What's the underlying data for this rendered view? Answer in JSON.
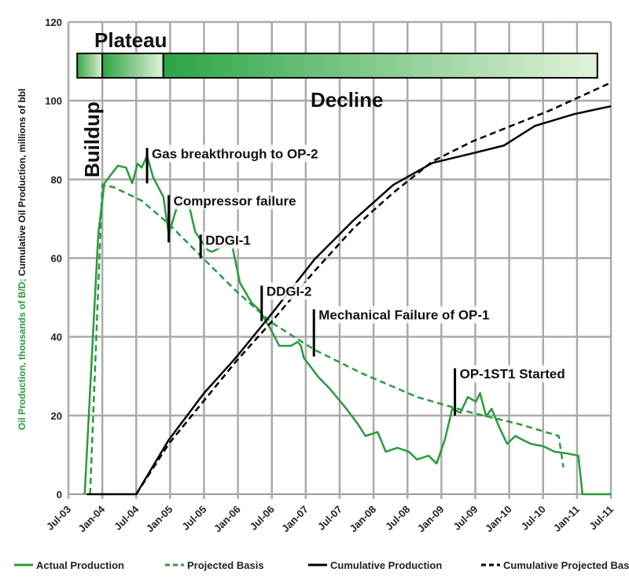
{
  "chart_data": {
    "type": "line",
    "title": "",
    "ylabel_green": "Oil Production, thousands of B/D;",
    "ylabel_black": " Cumulative Oil Production, millions of bbl",
    "xlabel": "",
    "ylim": [
      0,
      120
    ],
    "xlim": [
      2003.5,
      2011.5
    ],
    "yticks": [
      0,
      20,
      40,
      60,
      80,
      100,
      120
    ],
    "xticks": [
      {
        "x": 2003.5,
        "label": "Jul-03"
      },
      {
        "x": 2004.0,
        "label": "Jan-04"
      },
      {
        "x": 2004.5,
        "label": "Jul-04"
      },
      {
        "x": 2005.0,
        "label": "Jan-05"
      },
      {
        "x": 2005.5,
        "label": "Jul-05"
      },
      {
        "x": 2006.0,
        "label": "Jan-06"
      },
      {
        "x": 2006.5,
        "label": "Jul-06"
      },
      {
        "x": 2007.0,
        "label": "Jan-07"
      },
      {
        "x": 2007.5,
        "label": "Jul-07"
      },
      {
        "x": 2008.0,
        "label": "Jan-08"
      },
      {
        "x": 2008.5,
        "label": "Jul-08"
      },
      {
        "x": 2009.0,
        "label": "Jan-09"
      },
      {
        "x": 2009.5,
        "label": "Jul-09"
      },
      {
        "x": 2010.0,
        "label": "Jan-10"
      },
      {
        "x": 2010.5,
        "label": "Jul-10"
      },
      {
        "x": 2011.0,
        "label": "Jan-11"
      },
      {
        "x": 2011.5,
        "label": "Jul-11"
      }
    ],
    "grid": true,
    "legend_position": "bottom",
    "series": [
      {
        "name": "Actual Production",
        "color": "#2a9a3e",
        "dash": false,
        "points": [
          [
            2003.74,
            0
          ],
          [
            2003.94,
            66
          ],
          [
            2004.03,
            79
          ],
          [
            2004.23,
            83.5
          ],
          [
            2004.35,
            83
          ],
          [
            2004.44,
            79
          ],
          [
            2004.52,
            84
          ],
          [
            2004.58,
            83
          ],
          [
            2004.66,
            86
          ],
          [
            2004.75,
            80.5
          ],
          [
            2004.9,
            75.6
          ],
          [
            2004.98,
            66
          ],
          [
            2005.1,
            73
          ],
          [
            2005.18,
            74.6
          ],
          [
            2005.27,
            74
          ],
          [
            2005.37,
            66.7
          ],
          [
            2005.45,
            64.6
          ],
          [
            2005.56,
            62
          ],
          [
            2005.62,
            61.6
          ],
          [
            2005.74,
            62.7
          ],
          [
            2005.91,
            63.6
          ],
          [
            2006.03,
            53.7
          ],
          [
            2006.2,
            48.7
          ],
          [
            2006.32,
            46.7
          ],
          [
            2006.49,
            41.7
          ],
          [
            2006.61,
            37.7
          ],
          [
            2006.78,
            37.7
          ],
          [
            2006.88,
            38.7
          ],
          [
            2006.93,
            37.7
          ],
          [
            2006.97,
            34.7
          ],
          [
            2007.19,
            29.7
          ],
          [
            2007.36,
            26.7
          ],
          [
            2007.6,
            21.7
          ],
          [
            2007.77,
            17.8
          ],
          [
            2007.88,
            14.8
          ],
          [
            2008.06,
            15.8
          ],
          [
            2008.18,
            10.8
          ],
          [
            2008.35,
            11.8
          ],
          [
            2008.52,
            10.8
          ],
          [
            2008.64,
            8.8
          ],
          [
            2008.81,
            9.8
          ],
          [
            2008.93,
            7.8
          ],
          [
            2009.05,
            13.8
          ],
          [
            2009.16,
            21.7
          ],
          [
            2009.28,
            20.7
          ],
          [
            2009.39,
            24.7
          ],
          [
            2009.51,
            23.5
          ],
          [
            2009.57,
            25.7
          ],
          [
            2009.66,
            19.8
          ],
          [
            2009.74,
            21.7
          ],
          [
            2009.86,
            16.8
          ],
          [
            2009.97,
            12.8
          ],
          [
            2010.09,
            14.8
          ],
          [
            2010.2,
            13.8
          ],
          [
            2010.32,
            12.8
          ],
          [
            2010.5,
            12.2
          ],
          [
            2010.67,
            10.8
          ],
          [
            2010.84,
            10.4
          ],
          [
            2011.02,
            9.8
          ],
          [
            2011.08,
            0
          ],
          [
            2011.5,
            0
          ]
        ]
      },
      {
        "name": "Projected Basis",
        "color": "#2a9a3e",
        "dash": true,
        "points": [
          [
            2003.82,
            0
          ],
          [
            2004.0,
            78.6
          ],
          [
            2004.17,
            78
          ],
          [
            2004.58,
            74.6
          ],
          [
            2004.98,
            68.7
          ],
          [
            2005.5,
            59.7
          ],
          [
            2005.97,
            51.7
          ],
          [
            2006.49,
            43.7
          ],
          [
            2007.13,
            36.7
          ],
          [
            2007.83,
            30.7
          ],
          [
            2008.64,
            24.7
          ],
          [
            2009.45,
            20.7
          ],
          [
            2010.15,
            17.8
          ],
          [
            2010.73,
            14.8
          ],
          [
            2010.8,
            6.8
          ]
        ]
      },
      {
        "name": "Cumulative Production",
        "color": "#000000",
        "dash": false,
        "points": [
          [
            2003.77,
            0
          ],
          [
            2004.5,
            0
          ],
          [
            2004.98,
            13.8
          ],
          [
            2005.5,
            25.7
          ],
          [
            2005.97,
            34.7
          ],
          [
            2006.49,
            45.7
          ],
          [
            2007.13,
            59.7
          ],
          [
            2007.71,
            69.7
          ],
          [
            2008.29,
            78.6
          ],
          [
            2008.87,
            84.2
          ],
          [
            2009.45,
            86.6
          ],
          [
            2009.92,
            88.6
          ],
          [
            2010.38,
            93.6
          ],
          [
            2010.96,
            96.6
          ],
          [
            2011.5,
            98.6
          ]
        ]
      },
      {
        "name": "Cumulative Projected Basis",
        "color": "#000000",
        "dash": true,
        "points": [
          [
            2004.5,
            0
          ],
          [
            2004.98,
            12.8
          ],
          [
            2005.5,
            23.8
          ],
          [
            2005.97,
            33.7
          ],
          [
            2006.49,
            43.7
          ],
          [
            2007.13,
            56.7
          ],
          [
            2007.71,
            67.7
          ],
          [
            2008.29,
            76.6
          ],
          [
            2008.87,
            84.6
          ],
          [
            2009.45,
            89.6
          ],
          [
            2010.03,
            93.6
          ],
          [
            2010.61,
            97.6
          ],
          [
            2011.5,
            104.6
          ]
        ]
      }
    ],
    "annotations": [
      {
        "text": "Gas breakthrough to OP-2",
        "x": 2004.66,
        "y_from": 79,
        "y_to": 88
      },
      {
        "text": "Compressor failure",
        "x": 2004.98,
        "y_from": 64,
        "y_to": 76
      },
      {
        "text": "DDGI-1",
        "x": 2005.45,
        "y_from": 60,
        "y_to": 66
      },
      {
        "text": "DDGI-2",
        "x": 2006.35,
        "y_from": 44,
        "y_to": 53
      },
      {
        "text": "Mechanical Failure of OP-1",
        "x": 2007.12,
        "y_from": 35,
        "y_to": 47
      },
      {
        "text": "OP-1ST1 Started",
        "x": 2009.2,
        "y_from": 20,
        "y_to": 32
      }
    ],
    "phases": [
      {
        "label": "Buildup",
        "start": 2003.63,
        "end": 2004.0
      },
      {
        "label": "Plateau",
        "start": 2004.0,
        "end": 2004.9
      },
      {
        "label": "Decline",
        "start": 2004.9,
        "end": 2011.3
      }
    ]
  }
}
